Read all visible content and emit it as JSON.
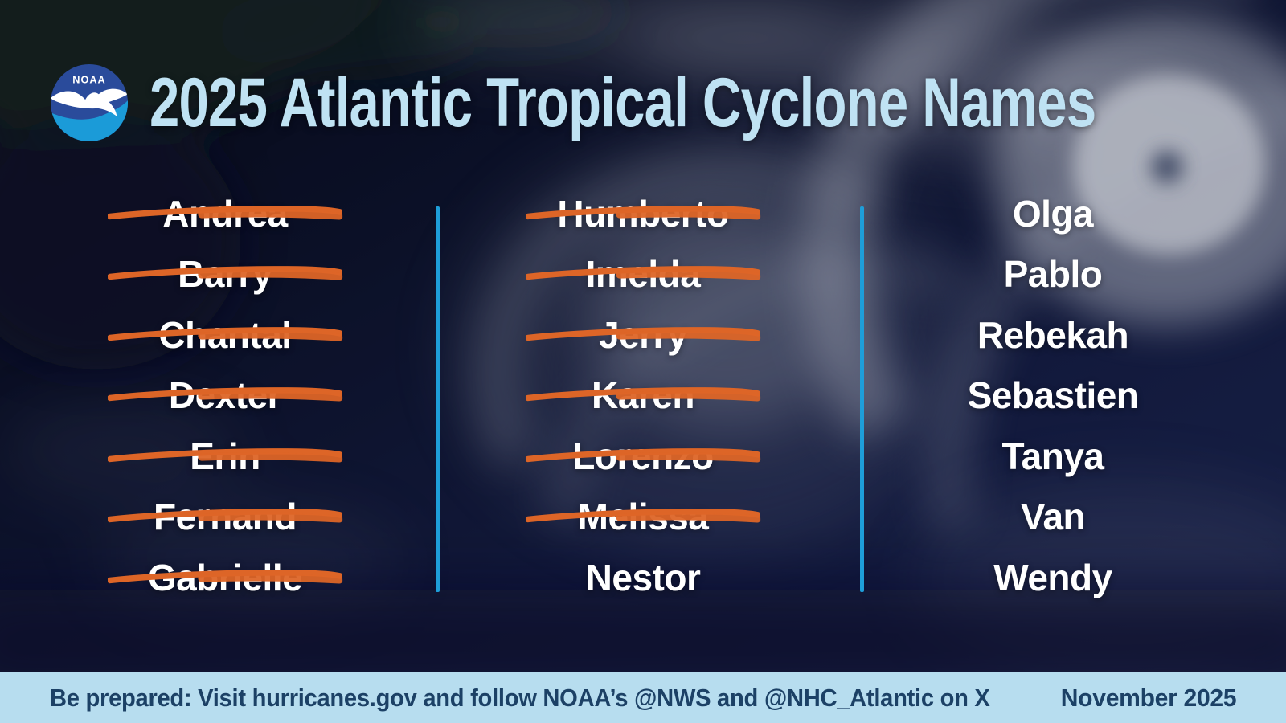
{
  "header": {
    "title": "2025 Atlantic Tropical Cyclone Names",
    "logo_text": "NOAA"
  },
  "columns": [
    {
      "names": [
        {
          "label": "Andrea",
          "struck": true
        },
        {
          "label": "Barry",
          "struck": true
        },
        {
          "label": "Chantal",
          "struck": true
        },
        {
          "label": "Dexter",
          "struck": true
        },
        {
          "label": "Erin",
          "struck": true
        },
        {
          "label": "Fernand",
          "struck": true
        },
        {
          "label": "Gabrielle",
          "struck": true
        }
      ]
    },
    {
      "names": [
        {
          "label": "Humberto",
          "struck": true
        },
        {
          "label": "Imelda",
          "struck": true
        },
        {
          "label": "Jerry",
          "struck": true
        },
        {
          "label": "Karen",
          "struck": true
        },
        {
          "label": "Lorenzo",
          "struck": true
        },
        {
          "label": "Melissa",
          "struck": true
        },
        {
          "label": "Nestor",
          "struck": false
        }
      ]
    },
    {
      "names": [
        {
          "label": "Olga",
          "struck": false
        },
        {
          "label": "Pablo",
          "struck": false
        },
        {
          "label": "Rebekah",
          "struck": false
        },
        {
          "label": "Sebastien",
          "struck": false
        },
        {
          "label": "Tanya",
          "struck": false
        },
        {
          "label": "Van",
          "struck": false
        },
        {
          "label": "Wendy",
          "struck": false
        }
      ]
    }
  ],
  "footer": {
    "message": "Be prepared: Visit hurricanes.gov and follow NOAA’s @NWS and @NHC_Atlantic on X",
    "date": "November 2025"
  },
  "colors": {
    "title_blue": "#BFE2F3",
    "name_white": "#FFFFFF",
    "strike_orange": "#DD6527",
    "divider_blue": "#1E9ED9",
    "footer_bg": "#B7DDEF",
    "footer_text": "#1C4166",
    "logo_dark_blue": "#2A4B9B",
    "logo_cyan": "#1B9BD8"
  }
}
